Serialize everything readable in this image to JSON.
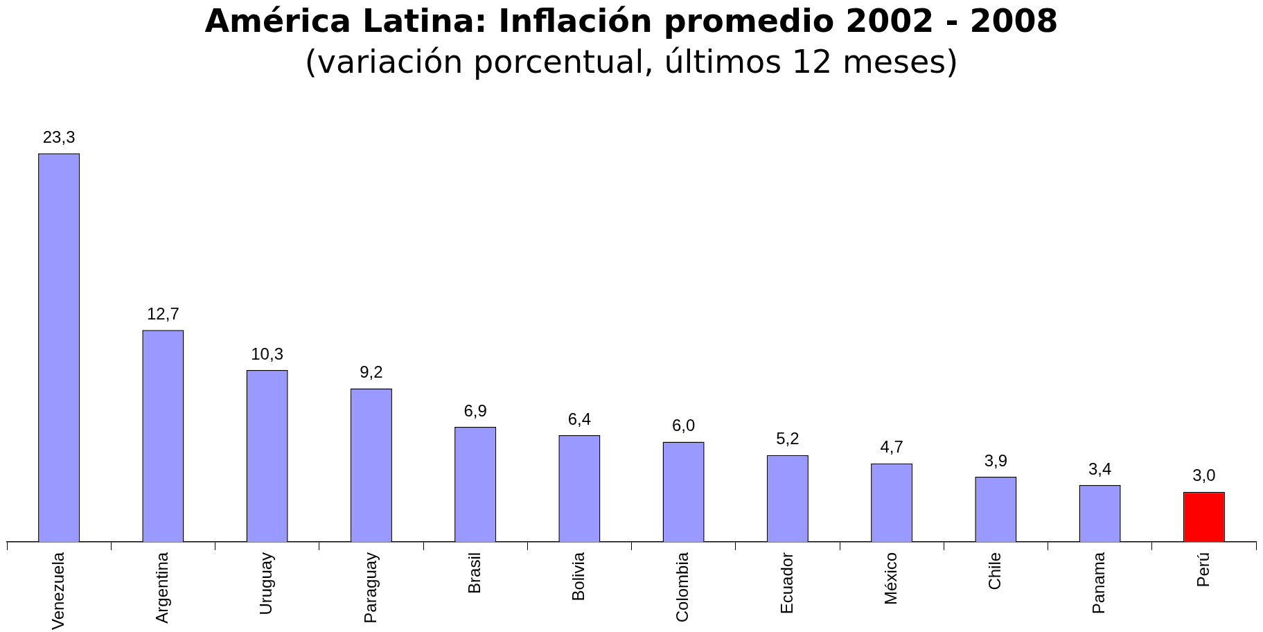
{
  "chart_data": {
    "type": "bar",
    "title": "América Latina: Inflación promedio 2002 - 2008",
    "subtitle": "(variación porcentual, últimos 12 meses)",
    "categories": [
      "Venezuela",
      "Argentina",
      "Uruguay",
      "Paraguay",
      "Brasil",
      "Bolivia",
      "Colombia",
      "Ecuador",
      "México",
      "Chile",
      "Panama",
      "Perú"
    ],
    "values": [
      23.3,
      12.7,
      10.3,
      9.2,
      6.9,
      6.4,
      6.0,
      5.2,
      4.7,
      3.9,
      3.4,
      3.0
    ],
    "value_labels": [
      "23,3",
      "12,7",
      "10,3",
      "9,2",
      "6,9",
      "6,4",
      "6,0",
      "5,2",
      "4,7",
      "3,9",
      "3,4",
      "3,0"
    ],
    "colors": [
      "#9999ff",
      "#9999ff",
      "#9999ff",
      "#9999ff",
      "#9999ff",
      "#9999ff",
      "#9999ff",
      "#9999ff",
      "#9999ff",
      "#9999ff",
      "#9999ff",
      "#ff0000"
    ],
    "legend": false,
    "grid": false
  }
}
